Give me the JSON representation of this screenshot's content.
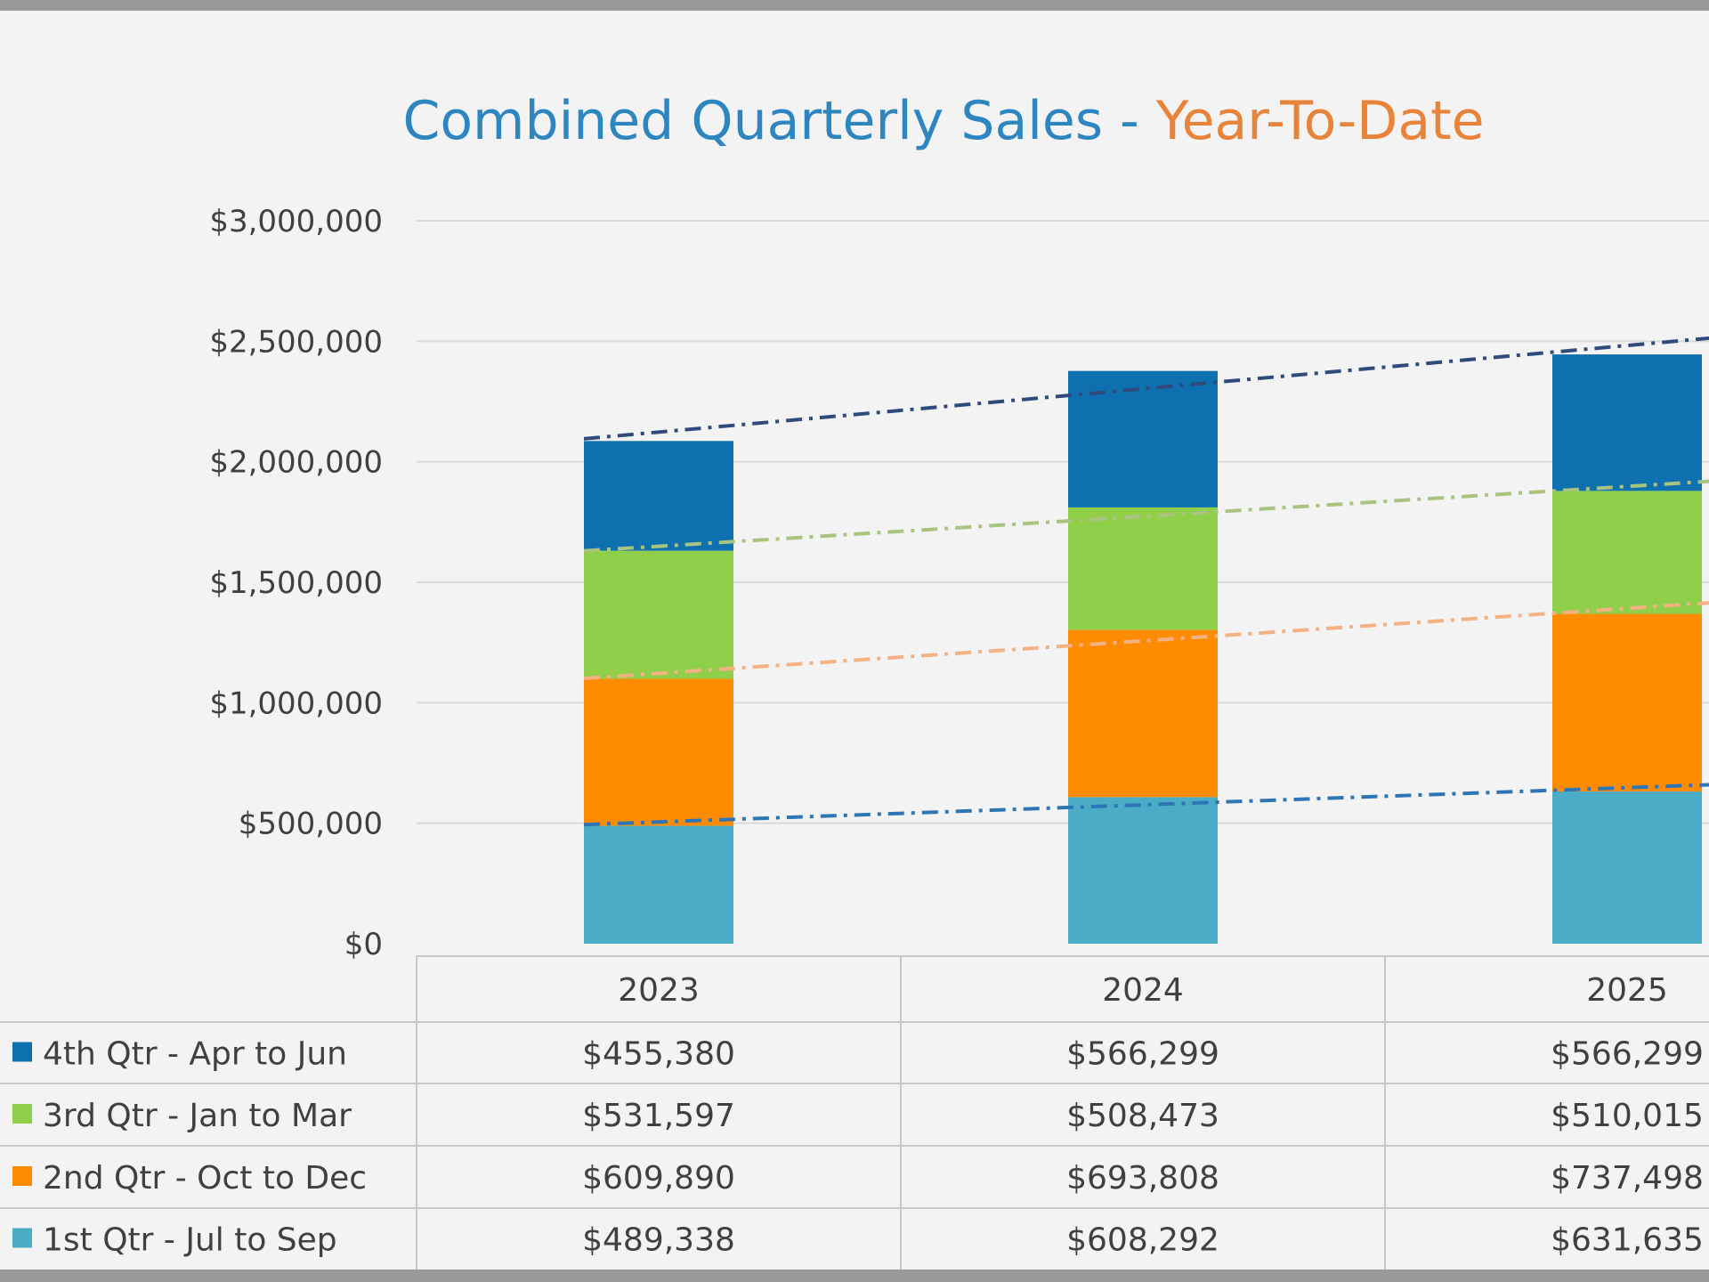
{
  "colors": {
    "background": "#f3f3f3",
    "title_primary": "#2e86c1",
    "title_accent": "#e8833a",
    "gridline": "#d9d9d9",
    "table_border": "#c8c8c8"
  },
  "chart_data": {
    "type": "bar",
    "stacked": true,
    "title": "Combined Quarterly Sales",
    "title_separator": " - ",
    "title_accent": "Year-To-Date",
    "categories": [
      "2023",
      "2024",
      "2025"
    ],
    "ylim": [
      0,
      3000000
    ],
    "yticks": [
      0,
      500000,
      1000000,
      1500000,
      2000000,
      2500000,
      3000000
    ],
    "ytick_labels": [
      "$0",
      "$500,000",
      "$1,000,000",
      "$1,500,000",
      "$2,000,000",
      "$2,500,000",
      "$3,000,000"
    ],
    "grid": true,
    "legend_placement": "data-table-left",
    "data_table": true,
    "trendlines": "dash-dot, one per series (cumulative top of each segment)",
    "series": [
      {
        "name": "1st Qtr - Jul to Sep",
        "color": "#4bacc6",
        "trend_color": "#2e75b6",
        "values": [
          489338,
          608292,
          631635
        ],
        "labels": [
          "$489,338",
          "$608,292",
          "$631,635"
        ]
      },
      {
        "name": "2nd Qtr  - Oct to Dec",
        "color": "#ff8c00",
        "trend_color": "#f4b183",
        "values": [
          609890,
          693808,
          737498
        ],
        "labels": [
          "$609,890",
          "$693,808",
          "$737,498"
        ]
      },
      {
        "name": "3rd Qtr - Jan to Mar",
        "color": "#8fcf4a",
        "trend_color": "#a9c47f",
        "values": [
          531597,
          508473,
          510015
        ],
        "labels": [
          "$531,597",
          "$508,473",
          "$510,015"
        ]
      },
      {
        "name": "4th Qtr - Apr to Jun",
        "color": "#0f70b0",
        "trend_color": "#2f4b7c",
        "values": [
          455380,
          566299,
          566299
        ],
        "labels": [
          "$455,380",
          "$566,299",
          "$566,299"
        ]
      }
    ]
  }
}
